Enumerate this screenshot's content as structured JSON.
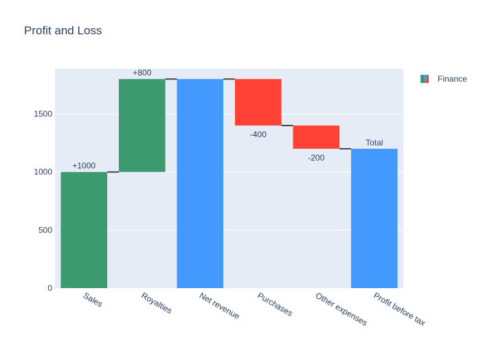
{
  "chart_data": {
    "type": "waterfall",
    "title": "Profit and Loss",
    "xlabel": "",
    "ylabel": "",
    "ylim": [
      0,
      1890
    ],
    "ytick_values": [
      0,
      500,
      1000,
      1500
    ],
    "ytick_labels": [
      "0",
      "500",
      "1000",
      "1500"
    ],
    "grid": true,
    "legend_position": "top-right",
    "series": [
      {
        "name": "Finance",
        "categories": [
          "Sales",
          "Royalties",
          "Net revenue",
          "Purchases",
          "Other expenses",
          "Profit before tax"
        ],
        "measures": [
          "relative",
          "relative",
          "total",
          "relative",
          "relative",
          "total"
        ],
        "values": [
          1000,
          800,
          1800,
          -400,
          -200,
          1200
        ],
        "text": [
          "+1000",
          "+800",
          "",
          "-400",
          "-200",
          "Total"
        ]
      }
    ],
    "colors": {
      "increasing": "#3d9970",
      "decreasing": "#ff4136",
      "total": "#4499ff",
      "connector": "#444444",
      "plot_background": "#e5ecf6",
      "grid": "#ffffff",
      "text": "#2a3f5f"
    }
  }
}
